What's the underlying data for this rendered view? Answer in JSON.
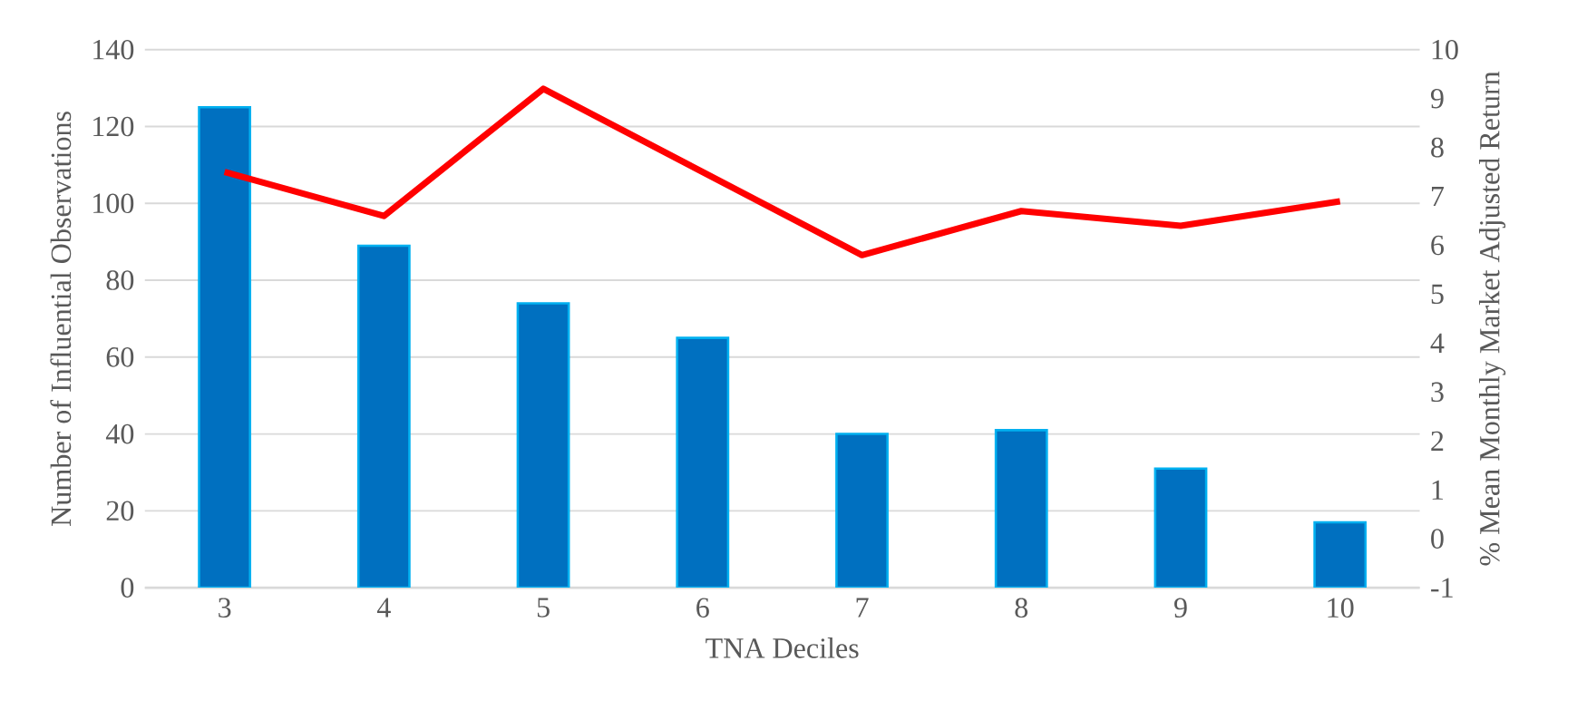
{
  "chart_data": {
    "type": "bar",
    "xlabel": "TNA Deciles",
    "ylabel": "Number of Influential Observations",
    "y2label": "% Mean Monthly Market Adjusted Return",
    "categories": [
      "3",
      "4",
      "5",
      "6",
      "7",
      "8",
      "9",
      "10"
    ],
    "series": [
      {
        "color": "#0070c0",
        "values": [
          125,
          89,
          74,
          65,
          40,
          41,
          31,
          17
        ]
      },
      {
        "type": "line",
        "axis": "y2",
        "color": "#ff0000",
        "values": [
          7.5,
          6.6,
          9.2,
          7.5,
          5.8,
          6.7,
          6.4,
          6.9
        ]
      }
    ],
    "ylim": [
      0,
      140
    ],
    "yticks": [
      0,
      20,
      40,
      60,
      80,
      100,
      120,
      140
    ],
    "y2lim": [
      -1,
      10
    ],
    "y2ticks": [
      -1,
      0,
      1,
      2,
      3,
      4,
      5,
      6,
      7,
      8,
      9,
      10
    ],
    "grid": "y"
  }
}
